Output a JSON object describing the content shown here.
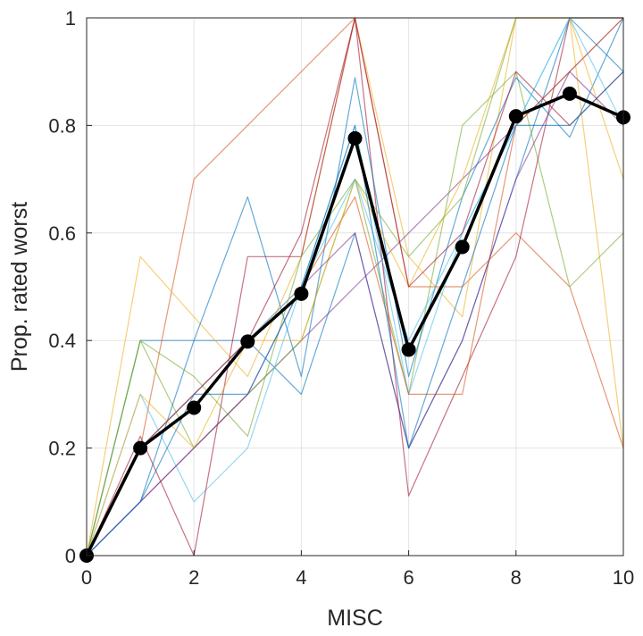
{
  "chart_data": {
    "type": "line",
    "title": "",
    "xlabel": "MISC",
    "ylabel": "Prop. rated worst",
    "xlim": [
      0,
      10
    ],
    "ylim": [
      0,
      1
    ],
    "grid": true,
    "legend": "none",
    "x": [
      0,
      1,
      2,
      3,
      4,
      5,
      6,
      7,
      8,
      9,
      10
    ],
    "x_ticks": [
      "0",
      "2",
      "4",
      "6",
      "8",
      "10"
    ],
    "y_ticks": [
      "0",
      "0.2",
      "0.4",
      "0.6",
      "0.8",
      "1"
    ],
    "mean_series": {
      "color": "#000000",
      "values": [
        0,
        0.2,
        0.275,
        0.398,
        0.487,
        0.776,
        0.383,
        0.574,
        0.817,
        0.859,
        0.815
      ]
    },
    "series": [
      {
        "color": "#0072BD",
        "values": [
          0,
          0.4,
          0.4,
          0.4,
          0.3,
          0.6,
          0.2,
          0.4,
          0.7,
          1.0,
          0.9
        ]
      },
      {
        "color": "#D95319",
        "values": [
          0,
          0.2,
          0.7,
          0.8,
          0.9,
          1.0,
          0.5,
          0.5,
          0.6,
          0.5,
          0.2
        ]
      },
      {
        "color": "#EDB120",
        "values": [
          0,
          0.556,
          0.444,
          0.333,
          0.556,
          1.0,
          0.556,
          0.444,
          1.0,
          1.0,
          0.2
        ]
      },
      {
        "color": "#7E2F8E",
        "values": [
          0,
          0.1,
          0.2,
          0.3,
          0.4,
          0.5,
          0.6,
          0.7,
          0.8,
          0.9,
          1.0
        ]
      },
      {
        "color": "#77AC30",
        "values": [
          0,
          0.4,
          0.2,
          0.3,
          0.4,
          0.7,
          0.3,
          0.8,
          0.9,
          0.5,
          0.6
        ]
      },
      {
        "color": "#4DBEEE",
        "values": [
          0,
          0.3,
          0.1,
          0.2,
          0.5,
          0.8,
          0.3,
          0.6,
          0.8,
          1.0,
          1.0
        ]
      },
      {
        "color": "#A2142F",
        "values": [
          0,
          0.222,
          0.0,
          0.556,
          0.556,
          1.0,
          0.111,
          0.333,
          0.556,
          1.0,
          1.0
        ]
      },
      {
        "color": "#0072BD",
        "values": [
          0,
          0.1,
          0.4,
          0.667,
          0.333,
          0.889,
          0.333,
          0.667,
          0.889,
          0.778,
          1.0
        ]
      },
      {
        "color": "#D95319",
        "values": [
          0,
          0.2,
          0.3,
          0.4,
          0.5,
          0.667,
          0.3,
          0.3,
          0.8,
          0.9,
          1.0
        ]
      },
      {
        "color": "#EDB120",
        "values": [
          0,
          0.3,
          0.2,
          0.4,
          0.4,
          0.7,
          0.5,
          0.7,
          1.0,
          1.0,
          0.7
        ]
      },
      {
        "color": "#77AC30",
        "values": [
          0,
          0.4,
          0.333,
          0.222,
          0.556,
          0.7,
          0.556,
          0.667,
          1.0,
          1.0,
          1.0
        ]
      },
      {
        "color": "#4DBEEE",
        "values": [
          0,
          0.2,
          0.3,
          0.4,
          0.5,
          0.7,
          0.4,
          0.6,
          0.8,
          1.0,
          0.8
        ]
      },
      {
        "color": "#7E2F8E",
        "values": [
          0,
          0.1,
          0.2,
          0.3,
          0.5,
          0.6,
          0.2,
          0.4,
          0.7,
          0.9,
          0.8
        ]
      },
      {
        "color": "#A2142F",
        "values": [
          0,
          0.2,
          0.3,
          0.4,
          0.6,
          1.0,
          0.5,
          0.6,
          0.9,
          0.8,
          0.9
        ]
      },
      {
        "color": "#0072BD",
        "values": [
          0,
          0.1,
          0.3,
          0.3,
          0.5,
          0.8,
          0.2,
          0.5,
          0.8,
          0.8,
          0.9
        ]
      }
    ]
  }
}
